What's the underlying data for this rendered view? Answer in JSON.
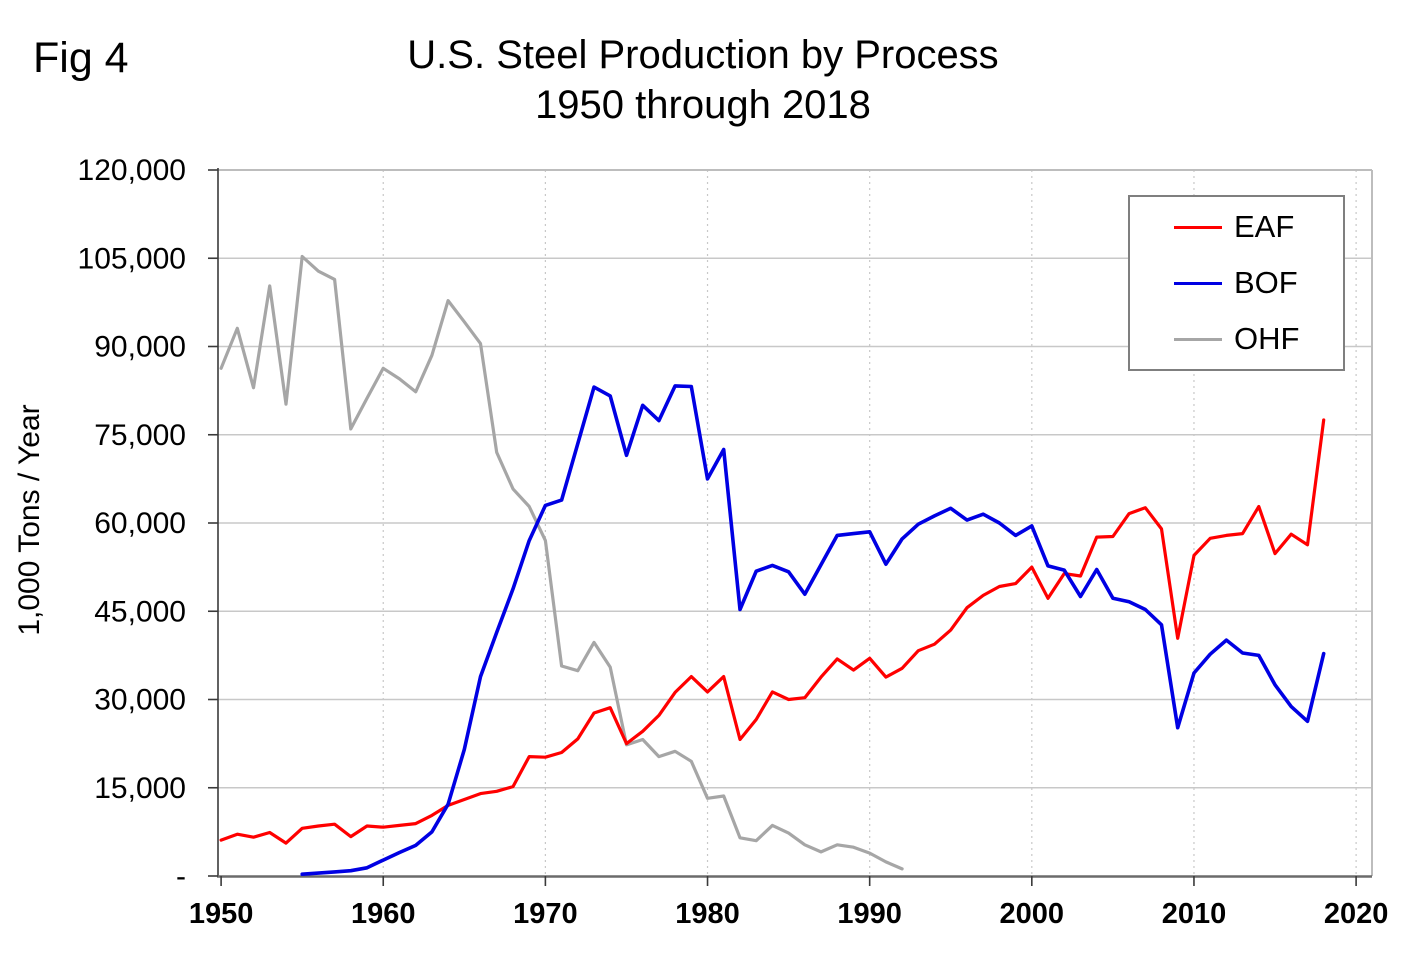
{
  "figure": {
    "fig_label": "Fig 4",
    "title_line1": "U.S. Steel Production by Process",
    "title_line2": "1950 through 2018"
  },
  "chart_data": {
    "type": "line",
    "title": "U.S. Steel Production by Process 1950 through 2018",
    "xlabel": "",
    "ylabel": "1,000 Tons / Year",
    "xlim": [
      1950,
      2020
    ],
    "ylim": [
      0,
      120000
    ],
    "grid": true,
    "legend_position": "top-right",
    "y_ticks": [
      {
        "value": 120000,
        "label": "120,000"
      },
      {
        "value": 105000,
        "label": "105,000"
      },
      {
        "value": 90000,
        "label": "90,000"
      },
      {
        "value": 75000,
        "label": "75,000"
      },
      {
        "value": 60000,
        "label": "60,000"
      },
      {
        "value": 45000,
        "label": "45,000"
      },
      {
        "value": 30000,
        "label": "30,000"
      },
      {
        "value": 15000,
        "label": "15,000"
      },
      {
        "value": 0,
        "label": "-"
      }
    ],
    "x_ticks": [
      {
        "year": 1950,
        "label": "1950"
      },
      {
        "year": 1960,
        "label": "1960"
      },
      {
        "year": 1970,
        "label": "1970"
      },
      {
        "year": 1980,
        "label": "1980"
      },
      {
        "year": 1990,
        "label": "1990"
      },
      {
        "year": 2000,
        "label": "2000"
      },
      {
        "year": 2010,
        "label": "2010"
      },
      {
        "year": 2020,
        "label": "2020"
      }
    ],
    "series": [
      {
        "name": "EAF",
        "color": "#ff0000",
        "width": 3.2,
        "points": [
          [
            1950,
            6100
          ],
          [
            1951,
            7100
          ],
          [
            1952,
            6600
          ],
          [
            1953,
            7400
          ],
          [
            1954,
            5600
          ],
          [
            1955,
            8100
          ],
          [
            1956,
            8500
          ],
          [
            1957,
            8800
          ],
          [
            1958,
            6700
          ],
          [
            1959,
            8500
          ],
          [
            1960,
            8300
          ],
          [
            1961,
            8600
          ],
          [
            1962,
            8900
          ],
          [
            1963,
            10300
          ],
          [
            1964,
            12000
          ],
          [
            1965,
            13000
          ],
          [
            1966,
            14000
          ],
          [
            1967,
            14400
          ],
          [
            1968,
            15200
          ],
          [
            1969,
            20300
          ],
          [
            1970,
            20200
          ],
          [
            1971,
            21000
          ],
          [
            1972,
            23300
          ],
          [
            1973,
            27700
          ],
          [
            1974,
            28600
          ],
          [
            1975,
            22500
          ],
          [
            1976,
            24600
          ],
          [
            1977,
            27300
          ],
          [
            1978,
            31200
          ],
          [
            1979,
            33900
          ],
          [
            1980,
            31300
          ],
          [
            1981,
            33900
          ],
          [
            1982,
            23200
          ],
          [
            1983,
            26600
          ],
          [
            1984,
            31300
          ],
          [
            1985,
            30000
          ],
          [
            1986,
            30300
          ],
          [
            1987,
            33800
          ],
          [
            1988,
            36900
          ],
          [
            1989,
            35000
          ],
          [
            1990,
            37000
          ],
          [
            1991,
            33800
          ],
          [
            1992,
            35300
          ],
          [
            1993,
            38300
          ],
          [
            1994,
            39400
          ],
          [
            1995,
            41800
          ],
          [
            1996,
            45600
          ],
          [
            1997,
            47700
          ],
          [
            1998,
            49200
          ],
          [
            1999,
            49700
          ],
          [
            2000,
            52500
          ],
          [
            2001,
            47200
          ],
          [
            2002,
            51400
          ],
          [
            2003,
            51000
          ],
          [
            2004,
            57600
          ],
          [
            2005,
            57700
          ],
          [
            2006,
            61600
          ],
          [
            2007,
            62600
          ],
          [
            2008,
            59000
          ],
          [
            2009,
            40400
          ],
          [
            2010,
            54500
          ],
          [
            2011,
            57400
          ],
          [
            2012,
            57900
          ],
          [
            2013,
            58200
          ],
          [
            2014,
            62800
          ],
          [
            2015,
            54800
          ],
          [
            2016,
            58100
          ],
          [
            2017,
            56300
          ],
          [
            2018,
            77500
          ]
        ]
      },
      {
        "name": "BOF",
        "color": "#0000e3",
        "width": 3.6,
        "points": [
          [
            1955,
            300
          ],
          [
            1956,
            500
          ],
          [
            1957,
            700
          ],
          [
            1958,
            900
          ],
          [
            1959,
            1400
          ],
          [
            1960,
            2700
          ],
          [
            1961,
            4000
          ],
          [
            1962,
            5200
          ],
          [
            1963,
            7500
          ],
          [
            1964,
            12200
          ],
          [
            1965,
            21500
          ],
          [
            1966,
            33900
          ],
          [
            1967,
            41400
          ],
          [
            1968,
            48800
          ],
          [
            1969,
            57000
          ],
          [
            1970,
            63000
          ],
          [
            1971,
            63900
          ],
          [
            1972,
            73500
          ],
          [
            1973,
            83100
          ],
          [
            1974,
            81600
          ],
          [
            1975,
            71500
          ],
          [
            1976,
            80000
          ],
          [
            1977,
            77400
          ],
          [
            1978,
            83300
          ],
          [
            1979,
            83200
          ],
          [
            1980,
            67500
          ],
          [
            1981,
            72500
          ],
          [
            1982,
            45300
          ],
          [
            1983,
            51800
          ],
          [
            1984,
            52800
          ],
          [
            1985,
            51700
          ],
          [
            1986,
            47900
          ],
          [
            1987,
            52900
          ],
          [
            1988,
            57900
          ],
          [
            1989,
            58200
          ],
          [
            1990,
            58500
          ],
          [
            1991,
            53000
          ],
          [
            1992,
            57300
          ],
          [
            1993,
            59800
          ],
          [
            1994,
            61200
          ],
          [
            1995,
            62500
          ],
          [
            1996,
            60500
          ],
          [
            1997,
            61500
          ],
          [
            1998,
            60000
          ],
          [
            1999,
            57900
          ],
          [
            2000,
            59500
          ],
          [
            2001,
            52700
          ],
          [
            2002,
            52000
          ],
          [
            2003,
            47500
          ],
          [
            2004,
            52100
          ],
          [
            2005,
            47200
          ],
          [
            2006,
            46600
          ],
          [
            2007,
            45300
          ],
          [
            2008,
            42700
          ],
          [
            2009,
            25200
          ],
          [
            2010,
            34500
          ],
          [
            2011,
            37700
          ],
          [
            2012,
            40100
          ],
          [
            2013,
            37900
          ],
          [
            2014,
            37500
          ],
          [
            2015,
            32500
          ],
          [
            2016,
            28800
          ],
          [
            2017,
            26300
          ],
          [
            2018,
            37800
          ]
        ]
      },
      {
        "name": "OHF",
        "color": "#a6a6a6",
        "width": 3.2,
        "points": [
          [
            1950,
            86300
          ],
          [
            1951,
            93100
          ],
          [
            1952,
            83000
          ],
          [
            1953,
            100300
          ],
          [
            1954,
            80200
          ],
          [
            1955,
            105300
          ],
          [
            1956,
            102800
          ],
          [
            1957,
            101400
          ],
          [
            1958,
            76000
          ],
          [
            1959,
            81200
          ],
          [
            1960,
            86300
          ],
          [
            1961,
            84500
          ],
          [
            1962,
            82300
          ],
          [
            1963,
            88500
          ],
          [
            1964,
            97800
          ],
          [
            1965,
            94200
          ],
          [
            1966,
            90500
          ],
          [
            1967,
            72000
          ],
          [
            1968,
            65800
          ],
          [
            1969,
            62800
          ],
          [
            1970,
            57000
          ],
          [
            1971,
            35700
          ],
          [
            1972,
            34900
          ],
          [
            1973,
            39700
          ],
          [
            1974,
            35500
          ],
          [
            1975,
            22300
          ],
          [
            1976,
            23200
          ],
          [
            1977,
            20300
          ],
          [
            1978,
            21200
          ],
          [
            1979,
            19500
          ],
          [
            1980,
            13200
          ],
          [
            1981,
            13600
          ],
          [
            1982,
            6500
          ],
          [
            1983,
            6000
          ],
          [
            1984,
            8600
          ],
          [
            1985,
            7300
          ],
          [
            1986,
            5300
          ],
          [
            1987,
            4100
          ],
          [
            1988,
            5300
          ],
          [
            1989,
            4900
          ],
          [
            1990,
            3900
          ],
          [
            1991,
            2400
          ],
          [
            1992,
            1200
          ]
        ]
      }
    ]
  }
}
